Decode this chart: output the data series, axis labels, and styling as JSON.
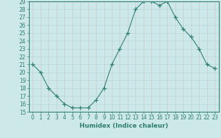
{
  "x": [
    0,
    1,
    2,
    3,
    4,
    5,
    6,
    7,
    8,
    9,
    10,
    11,
    12,
    13,
    14,
    15,
    16,
    17,
    18,
    19,
    20,
    21,
    22,
    23
  ],
  "y": [
    21,
    20,
    18,
    17,
    16,
    15.5,
    15.5,
    15.5,
    16.5,
    18,
    21,
    23,
    25,
    28,
    29,
    29,
    28.5,
    29,
    27,
    25.5,
    24.5,
    23,
    21,
    20.5
  ],
  "line_color": "#2e7d6e",
  "marker": "+",
  "marker_size": 4,
  "bg_color": "#cce8e8",
  "xlabel": "Humidex (Indice chaleur)",
  "ylim": [
    15,
    29
  ],
  "xlim_min": -0.5,
  "xlim_max": 23.5,
  "yticks": [
    15,
    16,
    17,
    18,
    19,
    20,
    21,
    22,
    23,
    24,
    25,
    26,
    27,
    28,
    29
  ],
  "xticks": [
    0,
    1,
    2,
    3,
    4,
    5,
    6,
    7,
    8,
    9,
    10,
    11,
    12,
    13,
    14,
    15,
    16,
    17,
    18,
    19,
    20,
    21,
    22,
    23
  ],
  "tick_label_color": "#2e7d6e",
  "xlabel_color": "#2e7d6e",
  "spine_color": "#2e7d6e",
  "grid_color": "#b8d8d8",
  "grid_minor_color": "#d0e8e8",
  "tick_fontsize": 5.5,
  "xlabel_fontsize": 6.5
}
